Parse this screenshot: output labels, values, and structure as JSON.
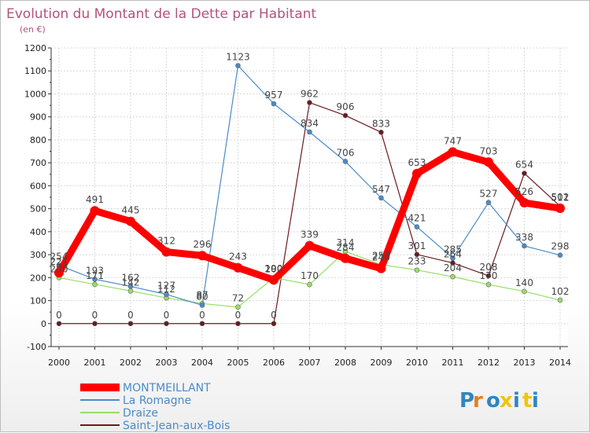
{
  "title": "Evolution du Montant de la Dette par Habitant",
  "subtitle": "(en €)",
  "logo": "Proxiti",
  "chart_data": {
    "type": "line",
    "title": "Evolution du Montant de la Dette par Habitant",
    "subtitle": "(en €)",
    "xlabel": "",
    "ylabel": "",
    "ylim": [
      -100,
      1200
    ],
    "yticks": [
      -100,
      0,
      100,
      200,
      300,
      400,
      500,
      600,
      700,
      800,
      900,
      1000,
      1100,
      1200
    ],
    "grid": true,
    "legend_position": "bottom-left",
    "x": [
      "2000",
      "2001",
      "2002",
      "2003",
      "2004",
      "2005",
      "2006",
      "2007",
      "2008",
      "2009",
      "2010",
      "2011",
      "2012",
      "2013",
      "2014"
    ],
    "series": [
      {
        "name": "Saint-Jean-aux-Bois",
        "color": "#6b1a1f",
        "values": [
          0,
          0,
          0,
          0,
          0,
          0,
          0,
          962,
          906,
          833,
          301,
          264,
          208,
          654,
          511
        ]
      },
      {
        "name": "Draize",
        "color": "#99dd66",
        "values": [
          200,
          171,
          142,
          112,
          87,
          72,
          200,
          170,
          314,
          257,
          233,
          204,
          170,
          140,
          102
        ]
      },
      {
        "name": "La Romagne",
        "color": "#4a8bc9",
        "values": [
          254,
          193,
          162,
          127,
          80,
          1123,
          957,
          834,
          706,
          547,
          421,
          285,
          527,
          338,
          298
        ]
      },
      {
        "name": "MONTMEILLANT",
        "color": "#ff0000",
        "values": [
          221,
          491,
          445,
          312,
          296,
          243,
          190,
          339,
          284,
          240,
          653,
          747,
          703,
          526,
          502
        ]
      }
    ],
    "legend": [
      "MONTMEILLANT",
      "La Romagne",
      "Draize",
      "Saint-Jean-aux-Bois"
    ]
  }
}
